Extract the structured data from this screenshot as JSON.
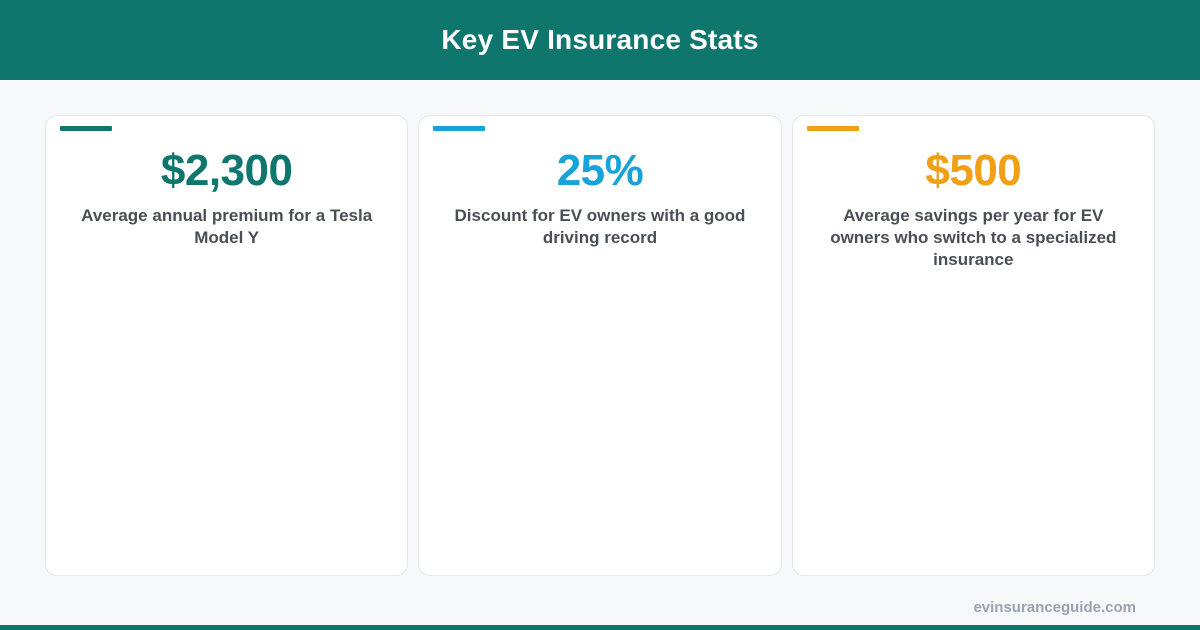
{
  "header": {
    "title": "Key EV Insurance Stats"
  },
  "colors": {
    "brand": "#0f766e",
    "page_background": "#f7f8fa"
  },
  "cards": [
    {
      "value": "$2,300",
      "description": "Average annual premium for a Tesla Model Y",
      "accent_color": "#0f766e"
    },
    {
      "value": "25%",
      "description": "Discount for EV owners with a good driving record",
      "accent_color": "#17a2d8"
    },
    {
      "value": "$500",
      "description": "Average savings per year for EV owners who switch to a specialized insurance",
      "accent_color": "#f0a012"
    }
  ],
  "footer": {
    "site": "evinsuranceguide.com"
  }
}
